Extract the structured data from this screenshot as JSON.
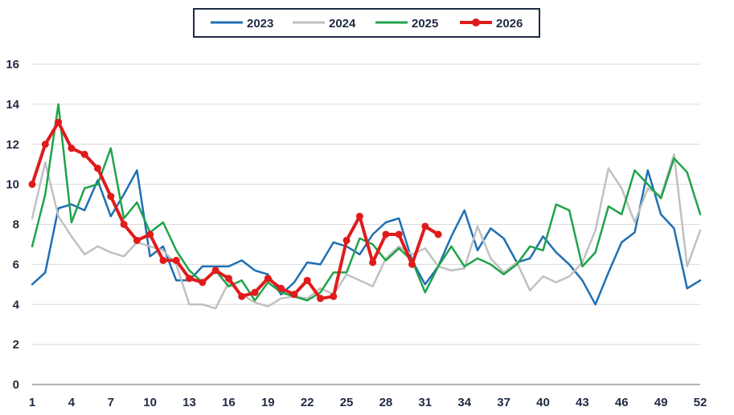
{
  "chart_data": {
    "type": "line",
    "title": "",
    "xlabel": "",
    "ylabel": "",
    "x": [
      1,
      2,
      3,
      4,
      5,
      6,
      7,
      8,
      9,
      10,
      11,
      12,
      13,
      14,
      15,
      16,
      17,
      18,
      19,
      20,
      21,
      22,
      23,
      24,
      25,
      26,
      27,
      28,
      29,
      30,
      31,
      32,
      33,
      34,
      35,
      36,
      37,
      38,
      39,
      40,
      41,
      42,
      43,
      44,
      45,
      46,
      47,
      48,
      49,
      50,
      51,
      52
    ],
    "xlim": [
      1,
      52
    ],
    "ylim": [
      0,
      16
    ],
    "x_tick_labels": [
      "1",
      "4",
      "7",
      "10",
      "13",
      "16",
      "19",
      "22",
      "25",
      "28",
      "31",
      "34",
      "37",
      "40",
      "43",
      "46",
      "49",
      "52"
    ],
    "y_tick_labels": [
      "0",
      "2",
      "4",
      "6",
      "8",
      "10",
      "12",
      "14",
      "16"
    ],
    "grid": "horizontal",
    "legend_position": "top-center",
    "series": [
      {
        "name": "2023",
        "color": "#1f6fb4",
        "values": [
          5.0,
          5.6,
          8.8,
          9.0,
          8.7,
          10.2,
          8.4,
          9.5,
          10.7,
          6.4,
          6.9,
          5.2,
          5.2,
          5.9,
          5.9,
          5.9,
          6.2,
          5.7,
          5.5,
          4.5,
          5.1,
          6.1,
          6.0,
          7.1,
          6.9,
          6.5,
          7.5,
          8.1,
          8.3,
          6.2,
          5.0,
          5.9,
          7.4,
          8.7,
          6.7,
          7.8,
          7.3,
          6.1,
          6.3,
          7.4,
          6.6,
          6.0,
          5.2,
          4.0,
          5.6,
          7.1,
          7.6,
          10.7,
          8.5,
          7.8,
          4.8,
          5.2
        ],
        "marker": false
      },
      {
        "name": "2024",
        "color": "#c0c0c0",
        "values": [
          8.3,
          11.1,
          8.4,
          7.4,
          6.5,
          6.9,
          6.6,
          6.4,
          7.1,
          6.9,
          6.7,
          6.0,
          4.0,
          4.0,
          3.8,
          5.1,
          4.5,
          4.1,
          3.9,
          4.3,
          4.4,
          4.3,
          4.8,
          4.5,
          5.5,
          5.2,
          4.9,
          6.3,
          6.9,
          6.5,
          6.8,
          5.9,
          5.7,
          5.8,
          7.9,
          6.3,
          5.6,
          6.1,
          4.7,
          5.4,
          5.1,
          5.4,
          6.1,
          7.7,
          10.8,
          9.8,
          8.1,
          9.8,
          9.4,
          11.5,
          5.9,
          7.7
        ],
        "marker": false
      },
      {
        "name": "2025",
        "color": "#1fa34a",
        "values": [
          6.9,
          9.5,
          14.0,
          8.1,
          9.8,
          10.0,
          11.8,
          8.3,
          9.1,
          7.6,
          8.1,
          6.7,
          5.7,
          5.1,
          5.7,
          4.9,
          5.2,
          4.2,
          5.1,
          4.6,
          4.4,
          4.2,
          4.6,
          5.6,
          5.6,
          7.3,
          7.0,
          6.2,
          6.8,
          6.2,
          4.6,
          5.9,
          6.9,
          5.9,
          6.3,
          6.0,
          5.5,
          6.0,
          6.9,
          6.7,
          9.0,
          8.7,
          5.9,
          6.6,
          8.9,
          8.5,
          10.7,
          10.0,
          9.3,
          11.3,
          10.6,
          8.5
        ],
        "marker": false
      },
      {
        "name": "2026",
        "color": "#e01b1b",
        "values": [
          10.0,
          12.0,
          13.1,
          11.8,
          11.5,
          10.8,
          9.4,
          8.0,
          7.2,
          7.5,
          6.2,
          6.2,
          5.3,
          5.1,
          5.7,
          5.3,
          4.4,
          4.6,
          5.3,
          4.8,
          4.5,
          5.2,
          4.3,
          4.4,
          7.2,
          8.4,
          6.1,
          7.5,
          7.5,
          6.0,
          7.9,
          7.5,
          null,
          null,
          null,
          null,
          null,
          null,
          null,
          null,
          null,
          null,
          null,
          null,
          null,
          null,
          null,
          null,
          null,
          null,
          null,
          null
        ],
        "marker": true
      }
    ]
  }
}
